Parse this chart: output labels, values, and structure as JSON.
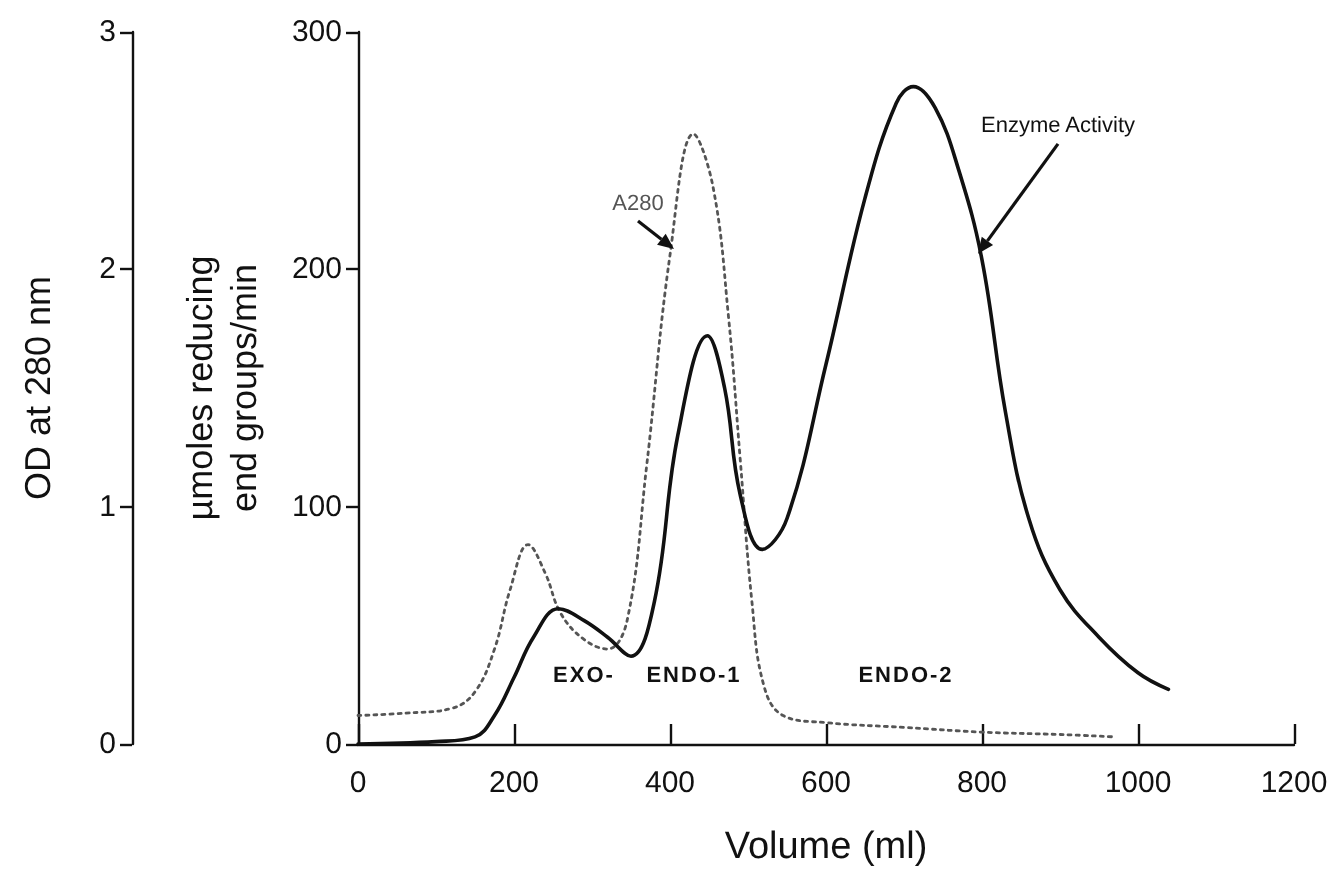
{
  "chart_data": {
    "type": "line",
    "xlabel": "Volume (ml)",
    "ylabel": "µmoles reducing end groups/min",
    "y2label": "OD at 280 nm",
    "xlim": [
      0,
      1200
    ],
    "xticks": [
      0,
      200,
      400,
      600,
      800,
      1000,
      1200
    ],
    "ylim": [
      0,
      300
    ],
    "yticks": [
      0,
      100,
      200,
      300
    ],
    "y2lim": [
      0,
      3
    ],
    "y2ticks": [
      0,
      1,
      2,
      3
    ],
    "grid": false,
    "legend": false,
    "marker": "none",
    "series": [
      {
        "name": "A280",
        "axis": "y2",
        "color": "#555555",
        "line_style": "dotted",
        "x": [
          0,
          60,
          120,
          150,
          175,
          195,
          218,
          240,
          260,
          290,
          320,
          345,
          370,
          400,
          430,
          455,
          475,
          490,
          505,
          520,
          545,
          600,
          700,
          800,
          900,
          970
        ],
        "values": [
          0.12,
          0.13,
          0.15,
          0.22,
          0.4,
          0.65,
          0.84,
          0.72,
          0.55,
          0.44,
          0.4,
          0.52,
          1.17,
          2.06,
          2.57,
          2.35,
          1.8,
          1.2,
          0.6,
          0.25,
          0.12,
          0.09,
          0.07,
          0.05,
          0.04,
          0.03
        ]
      },
      {
        "name": "Enzyme Activity",
        "color": "#111111",
        "line_style": "solid",
        "x": [
          0,
          100,
          150,
          175,
          200,
          225,
          257,
          290,
          320,
          350,
          380,
          410,
          448,
          470,
          490,
          518,
          550,
          600,
          650,
          690,
          712,
          740,
          770,
          800,
          830,
          860,
          900,
          950,
          1000,
          1039
        ],
        "values": [
          0,
          1,
          3,
          12,
          28,
          45,
          57,
          52,
          45,
          37,
          60,
          130,
          172,
          150,
          105,
          82,
          95,
          160,
          230,
          270,
          277,
          268,
          242,
          204,
          140,
          95,
          65,
          45,
          30,
          23
        ]
      }
    ],
    "annotations": [
      "EXO-",
      "ENDO-1",
      "ENDO-2"
    ]
  }
}
